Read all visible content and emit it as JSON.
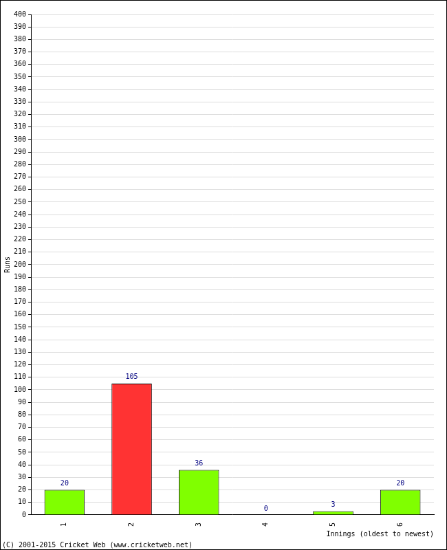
{
  "chart_data": {
    "type": "bar",
    "categories": [
      "1",
      "2",
      "3",
      "4",
      "5",
      "6"
    ],
    "values": [
      20,
      105,
      36,
      0,
      3,
      20
    ],
    "colors": [
      "#80ff00",
      "#ff3333",
      "#80ff00",
      "#80ff00",
      "#80ff00",
      "#80ff00"
    ],
    "x_label": "Innings (oldest to newest)",
    "y_label": "Runs",
    "source": "(C) 2001-2015 Cricket Web (www.cricketweb.net)",
    "ylim": [
      0,
      400
    ],
    "yticks": [
      0,
      10,
      20,
      30,
      40,
      50,
      60,
      70,
      80,
      90,
      100,
      110,
      120,
      130,
      140,
      150,
      160,
      170,
      180,
      190,
      200,
      210,
      220,
      230,
      240,
      250,
      260,
      270,
      280,
      290,
      300,
      310,
      320,
      330,
      340,
      350,
      360,
      370,
      380,
      390,
      400
    ],
    "grid": true,
    "data_labels": true
  }
}
